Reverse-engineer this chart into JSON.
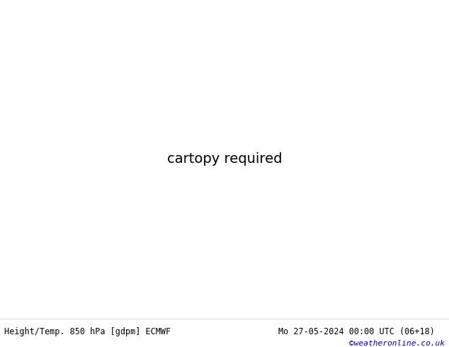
{
  "title_left": "Height/Temp. 850 hPa [gdpm] ECMWF",
  "title_right": "Mo 27-05-2024 00:00 UTC (06+18)",
  "credit": "©weatheronline.co.uk",
  "fig_width": 6.34,
  "fig_height": 4.9,
  "dpi": 100,
  "font_size_bottom": 8.5,
  "font_size_credit": 8,
  "credit_color": "#0000cc",
  "bottom_text_color": "#000000",
  "land_color": "#d8d8d8",
  "sea_color": "#e8e8e8",
  "green_land_color": "#c8e8a0",
  "extent": [
    -28,
    42,
    32,
    72
  ],
  "black_contour_lw": 2.2,
  "dashed_lw": 1.3
}
